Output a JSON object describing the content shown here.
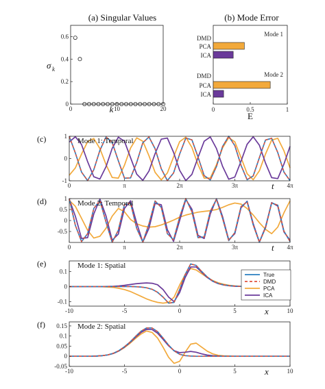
{
  "colors": {
    "true": "#2a7fc0",
    "dmd": "#e0523c",
    "pca": "#f2a93b",
    "ica": "#6a3a9a",
    "frame": "#222222"
  },
  "chart_data": [
    {
      "id": "a",
      "panel_label": "",
      "type": "scatter",
      "title": "(a) Singular Values",
      "xlabel": "k",
      "ylabel": "σ",
      "ylabel_sub": "k",
      "xlim": [
        0,
        20
      ],
      "ylim": [
        0,
        0.7
      ],
      "xticks": [
        "0",
        "10",
        "20"
      ],
      "yticks": [
        "0",
        "0.2",
        "0.4",
        "0.6"
      ],
      "x": [
        1,
        2,
        3,
        4,
        5,
        6,
        7,
        8,
        9,
        10,
        11,
        12,
        13,
        14,
        15,
        16,
        17,
        18,
        19,
        20
      ],
      "y": [
        0.59,
        0.4,
        0,
        0,
        0,
        0,
        0,
        0,
        0,
        0,
        0,
        0,
        0,
        0,
        0,
        0,
        0,
        0,
        0,
        0
      ]
    },
    {
      "id": "b",
      "panel_label": "",
      "type": "bar",
      "title": "(b) Mode Error",
      "xlabel": "E",
      "xlim": [
        0,
        1
      ],
      "xticks": [
        "0",
        "0.5",
        "1"
      ],
      "groups": [
        {
          "name": "Mode 1",
          "categories": [
            "DMD",
            "PCA",
            "ICA"
          ],
          "values": [
            0,
            0.42,
            0.27
          ]
        },
        {
          "name": "Mode 2",
          "categories": [
            "DMD",
            "PCA",
            "ICA"
          ],
          "values": [
            0,
            0.77,
            0.14
          ]
        }
      ]
    },
    {
      "id": "c",
      "panel_label": "(c)",
      "type": "line",
      "title": "Mode 1: Temporal",
      "xlabel": "t",
      "xlim": [
        0,
        12.566
      ],
      "ylim": [
        -1,
        1
      ],
      "xticks": [
        "0",
        "π",
        "2π",
        "3π",
        "4π"
      ],
      "yticks": [
        "-1",
        "0",
        "1"
      ],
      "x": [
        0,
        0.3491,
        0.6981,
        1.0472,
        1.3963,
        1.7453,
        2.0944,
        2.4435,
        2.7925,
        3.1416,
        3.4907,
        3.8397,
        4.1888,
        4.5379,
        4.8869,
        5.236,
        5.5851,
        5.9341,
        6.2832,
        6.6323,
        6.9813,
        7.3304,
        7.6794,
        8.0285,
        8.3776,
        8.7266,
        9.0757,
        9.4248,
        9.7738,
        10.1229,
        10.472,
        10.821,
        11.1701,
        11.5192,
        11.8682,
        12.2173,
        12.5664
      ],
      "series": [
        {
          "name": "True",
          "values": [
            1,
            0.25,
            -0.61,
            -0.99,
            -0.5,
            0.37,
            0.97,
            0.72,
            -0.1,
            -0.88,
            -0.87,
            -0.18,
            0.71,
            0.97,
            0.44,
            -0.46,
            -0.99,
            -0.65,
            0.2,
            0.92,
            0.84,
            0.07,
            -0.77,
            -0.96,
            -0.36,
            0.54,
            1,
            0.58,
            -0.3,
            -0.95,
            -0.78,
            0.04,
            0.83,
            0.91,
            0.27,
            -0.61,
            -0.99
          ]
        },
        {
          "name": "DMD",
          "values": [
            1,
            0.25,
            -0.61,
            -0.99,
            -0.5,
            0.37,
            0.97,
            0.72,
            -0.1,
            -0.88,
            -0.87,
            -0.18,
            0.71,
            0.97,
            0.44,
            -0.46,
            -0.99,
            -0.65,
            0.2,
            0.92,
            0.84,
            0.07,
            -0.77,
            -0.96,
            -0.36,
            0.54,
            1,
            0.58,
            -0.3,
            -0.95,
            -0.78,
            0.04,
            0.83,
            0.91,
            0.27,
            -0.61,
            -0.99
          ]
        },
        {
          "name": "PCA",
          "values": [
            -0.75,
            -0.42,
            0.2,
            0.76,
            0.9,
            0.45,
            -0.28,
            -0.85,
            -0.88,
            -0.3,
            0.47,
            0.93,
            0.78,
            0.12,
            -0.62,
            -0.96,
            -0.65,
            0.07,
            0.76,
            0.96,
            0.5,
            -0.27,
            -0.88,
            -0.87,
            -0.28,
            0.48,
            0.94,
            0.75,
            0.05,
            -0.68,
            -0.95,
            -0.55,
            0.2,
            0.83,
            0.91,
            0.35,
            -0.42
          ]
        },
        {
          "name": "ICA",
          "values": [
            0.74,
            0.98,
            0.63,
            -0.14,
            -0.82,
            -0.92,
            -0.36,
            0.46,
            0.96,
            0.78,
            0.04,
            -0.7,
            -0.98,
            -0.56,
            0.22,
            0.87,
            0.92,
            0.28,
            -0.53,
            -0.99,
            -0.71,
            0.05,
            0.78,
            0.97,
            0.45,
            -0.35,
            -0.93,
            -0.83,
            -0.12,
            0.64,
            0.98,
            0.6,
            -0.2,
            -0.86,
            -0.9,
            -0.25,
            0.55
          ]
        }
      ]
    },
    {
      "id": "d",
      "panel_label": "(d)",
      "type": "line",
      "title": "Mode 2: Temporal",
      "xlabel": "t",
      "xlim": [
        0,
        12.566
      ],
      "ylim": [
        -1,
        1
      ],
      "xticks": [
        "0",
        "π",
        "2π",
        "3π",
        "4π"
      ],
      "yticks": [
        "-0.5",
        "0",
        "0.5",
        "1"
      ],
      "x": [
        0,
        0.3491,
        0.6981,
        1.0472,
        1.3963,
        1.7453,
        2.0944,
        2.4435,
        2.7925,
        3.1416,
        3.4907,
        3.8397,
        4.1888,
        4.5379,
        4.8869,
        5.236,
        5.5851,
        5.9341,
        6.2832,
        6.6323,
        6.9813,
        7.3304,
        7.6794,
        8.0285,
        8.3776,
        8.7266,
        9.0757,
        9.4248,
        9.7738,
        10.1229,
        10.472,
        10.821,
        11.1701,
        11.5192,
        11.8682,
        12.2173,
        12.5664
      ],
      "series": [
        {
          "name": "True",
          "values": [
            1,
            -0.22,
            -0.96,
            -0.6,
            0.55,
            0.92,
            -0.08,
            -0.99,
            -0.44,
            0.73,
            0.79,
            -0.36,
            -0.98,
            -0.15,
            0.89,
            0.6,
            -0.6,
            -0.88,
            0.15,
            1,
            0.4,
            -0.78,
            -0.75,
            0.42,
            0.97,
            0.1,
            -0.92,
            -0.55,
            0.63,
            0.86,
            -0.2,
            -0.99,
            -0.34,
            0.8,
            0.7,
            -0.48,
            -0.96
          ]
        },
        {
          "name": "DMD",
          "values": [
            1,
            -0.22,
            -0.96,
            -0.6,
            0.55,
            0.92,
            -0.08,
            -0.99,
            -0.44,
            0.73,
            0.79,
            -0.36,
            -0.98,
            -0.15,
            0.89,
            0.6,
            -0.6,
            -0.88,
            0.15,
            1,
            0.4,
            -0.78,
            -0.75,
            0.42,
            0.97,
            0.1,
            -0.92,
            -0.55,
            0.63,
            0.86,
            -0.2,
            -0.99,
            -0.34,
            0.8,
            0.7,
            -0.48,
            -0.96
          ]
        },
        {
          "name": "PCA",
          "values": [
            0.92,
            0.65,
            0.1,
            -0.45,
            -0.8,
            -0.72,
            -0.35,
            0.2,
            0.55,
            0.4,
            0.05,
            -0.15,
            -0.25,
            -0.3,
            -0.28,
            -0.2,
            -0.1,
            0.02,
            0.15,
            0.25,
            0.32,
            0.38,
            0.42,
            0.45,
            0.5,
            0.6,
            0.72,
            0.8,
            0.75,
            0.55,
            0.25,
            -0.1,
            -0.4,
            -0.6,
            -0.3,
            0.35,
            0.9
          ]
        },
        {
          "name": "ICA",
          "values": [
            0.98,
            0.2,
            -0.82,
            -0.78,
            0.3,
            0.98,
            0.2,
            -0.9,
            -0.62,
            0.55,
            0.9,
            -0.12,
            -0.98,
            -0.35,
            0.78,
            0.72,
            -0.42,
            -0.95,
            0.0,
            0.96,
            0.52,
            -0.68,
            -0.82,
            0.3,
            0.99,
            0.18,
            -0.88,
            -0.6,
            0.58,
            0.88,
            -0.14,
            -0.98,
            -0.3,
            0.82,
            0.66,
            -0.52,
            -0.9
          ]
        }
      ]
    },
    {
      "id": "e",
      "panel_label": "(e)",
      "type": "line",
      "title": "Mode 1: Spatial",
      "xlabel": "x",
      "xlim": [
        -10,
        10
      ],
      "ylim": [
        -0.13,
        0.17
      ],
      "xticks": [
        "-10",
        "-5",
        "0",
        "5",
        "10"
      ],
      "yticks": [
        "-0.1",
        "0",
        "0.1"
      ],
      "legend": {
        "placement": "right",
        "entries": [
          "True",
          "DMD",
          "PCA",
          "ICA"
        ]
      },
      "x": [
        -10,
        -9.5,
        -9,
        -8.5,
        -8,
        -7.5,
        -7,
        -6.5,
        -6,
        -5.5,
        -5,
        -4.5,
        -4,
        -3.5,
        -3,
        -2.5,
        -2,
        -1.5,
        -1,
        -0.5,
        0,
        0.5,
        1,
        1.5,
        2,
        2.5,
        3,
        3.5,
        4,
        4.5,
        5,
        5.5,
        6,
        6.5,
        7,
        7.5,
        8,
        8.5,
        9,
        9.5,
        10
      ],
      "series": [
        {
          "name": "True",
          "values": [
            0,
            0,
            0,
            0,
            0,
            0,
            0,
            0,
            0,
            0,
            0,
            0,
            -0.001,
            -0.003,
            -0.008,
            -0.018,
            -0.038,
            -0.07,
            -0.11,
            -0.105,
            -0.02,
            0.08,
            0.15,
            0.14,
            0.1,
            0.063,
            0.037,
            0.02,
            0.011,
            0.006,
            0.003,
            0.001,
            0,
            0,
            0,
            0,
            0,
            0,
            0,
            0,
            0
          ]
        },
        {
          "name": "DMD",
          "values": [
            0,
            0,
            0,
            0,
            0,
            0,
            0,
            0,
            0,
            0,
            0,
            0,
            -0.001,
            -0.003,
            -0.008,
            -0.018,
            -0.038,
            -0.07,
            -0.11,
            -0.105,
            -0.02,
            0.08,
            0.15,
            0.14,
            0.1,
            0.063,
            0.037,
            0.02,
            0.011,
            0.006,
            0.003,
            0.001,
            0,
            0,
            0,
            0,
            0,
            0,
            0,
            0,
            0
          ]
        },
        {
          "name": "PCA",
          "values": [
            0,
            0,
            0,
            0,
            0,
            0,
            -0.001,
            -0.003,
            -0.006,
            -0.012,
            -0.02,
            -0.032,
            -0.048,
            -0.065,
            -0.082,
            -0.095,
            -0.105,
            -0.11,
            -0.105,
            -0.07,
            0.01,
            0.08,
            0.12,
            0.11,
            0.085,
            0.06,
            0.04,
            0.025,
            0.015,
            0.008,
            0.004,
            0.002,
            0.001,
            0,
            0,
            0,
            0,
            0,
            0,
            0,
            0
          ]
        },
        {
          "name": "ICA",
          "values": [
            0,
            0,
            0,
            0,
            0,
            0,
            0,
            0.001,
            0.002,
            0.004,
            0.008,
            0.013,
            0.018,
            0.022,
            0.024,
            0.022,
            0.012,
            -0.02,
            -0.07,
            -0.1,
            -0.04,
            0.06,
            0.13,
            0.13,
            0.095,
            0.06,
            0.035,
            0.019,
            0.01,
            0.005,
            0.002,
            0.001,
            0,
            0,
            0,
            0,
            0,
            0,
            0,
            0,
            0
          ]
        }
      ]
    },
    {
      "id": "f",
      "panel_label": "(f)",
      "type": "line",
      "title": "Mode 2: Spatial",
      "xlabel": "x",
      "xlim": [
        -10,
        10
      ],
      "ylim": [
        -0.05,
        0.17
      ],
      "xticks": [
        "-10",
        "-5",
        "0",
        "5",
        "10"
      ],
      "yticks": [
        "-0.05",
        "0",
        "0.05",
        "0.1",
        "0.15"
      ],
      "x": [
        -10,
        -9.5,
        -9,
        -8.5,
        -8,
        -7.5,
        -7,
        -6.5,
        -6,
        -5.5,
        -5,
        -4.5,
        -4,
        -3.5,
        -3,
        -2.5,
        -2,
        -1.5,
        -1,
        -0.5,
        0,
        0.5,
        1,
        1.5,
        2,
        2.5,
        3,
        3.5,
        4,
        4.5,
        5,
        5.5,
        6,
        6.5,
        7,
        7.5,
        8,
        8.5,
        9,
        9.5,
        10
      ],
      "series": [
        {
          "name": "True",
          "values": [
            0,
            0,
            0,
            0,
            0,
            0.001,
            0.003,
            0.007,
            0.015,
            0.028,
            0.047,
            0.07,
            0.098,
            0.124,
            0.14,
            0.14,
            0.122,
            0.09,
            0.055,
            0.027,
            0.01,
            0.003,
            0.001,
            0,
            0,
            0,
            0,
            0,
            0,
            0,
            0,
            0,
            0,
            0,
            0,
            0,
            0,
            0,
            0,
            0,
            0
          ]
        },
        {
          "name": "DMD",
          "values": [
            0,
            0,
            0,
            0,
            0,
            0.001,
            0.003,
            0.007,
            0.015,
            0.028,
            0.047,
            0.07,
            0.098,
            0.124,
            0.14,
            0.14,
            0.122,
            0.09,
            0.055,
            0.027,
            0.01,
            0.003,
            0.001,
            0,
            0,
            0,
            0,
            0,
            0,
            0,
            0,
            0,
            0,
            0,
            0,
            0,
            0,
            0,
            0,
            0,
            0
          ]
        },
        {
          "name": "PCA",
          "values": [
            0,
            0,
            0,
            0,
            0,
            0.001,
            0.003,
            0.007,
            0.014,
            0.026,
            0.043,
            0.064,
            0.088,
            0.11,
            0.125,
            0.118,
            0.09,
            0.045,
            -0.005,
            -0.035,
            -0.025,
            0.02,
            0.06,
            0.065,
            0.045,
            0.025,
            0.012,
            0.005,
            0.002,
            0.001,
            0,
            0,
            0,
            0,
            0,
            0,
            0,
            0,
            0,
            0,
            0
          ]
        },
        {
          "name": "ICA",
          "values": [
            0,
            0,
            0,
            0,
            0,
            0.001,
            0.003,
            0.007,
            0.014,
            0.027,
            0.045,
            0.068,
            0.094,
            0.118,
            0.133,
            0.132,
            0.114,
            0.084,
            0.052,
            0.028,
            0.018,
            0.02,
            0.024,
            0.02,
            0.012,
            0.006,
            0.003,
            0.001,
            0,
            0,
            0,
            0,
            0,
            0,
            0,
            0,
            0,
            0,
            0,
            0,
            0
          ]
        }
      ]
    }
  ]
}
